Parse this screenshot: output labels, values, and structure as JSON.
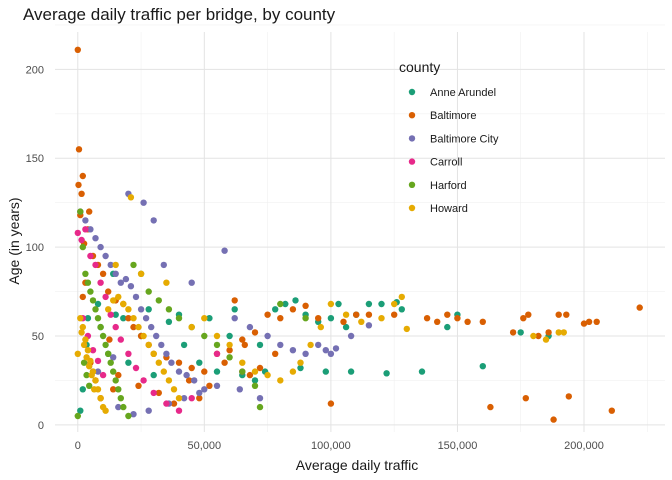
{
  "chart_data": {
    "type": "scatter",
    "title": "Average daily traffic per bridge, by county",
    "xlabel": "Average daily traffic",
    "ylabel": "Age (in years)",
    "xlim": [
      -9000,
      232000
    ],
    "ylim": [
      -4,
      221
    ],
    "x_ticks": [
      0,
      50000,
      100000,
      150000,
      200000
    ],
    "x_tick_labels": [
      "0",
      "50,000",
      "100,000",
      "150,000",
      "200,000"
    ],
    "y_ticks": [
      0,
      50,
      100,
      150,
      200
    ],
    "y_tick_labels": [
      "0",
      "50",
      "100",
      "150",
      "200"
    ],
    "grid": true,
    "legend": {
      "title": "county",
      "placement": "top-right (inside plot)",
      "entries": [
        "Anne Arundel",
        "Baltimore",
        "Baltimore City",
        "Carroll",
        "Harford",
        "Howard"
      ]
    },
    "colors": {
      "Anne Arundel": "#1b9e77",
      "Baltimore": "#d95f02",
      "Baltimore City": "#7570b3",
      "Carroll": "#e7298a",
      "Harford": "#66a61e",
      "Howard": "#e6ab02"
    },
    "series": [
      {
        "name": "Anne Arundel",
        "points": [
          [
            2000,
            20
          ],
          [
            3500,
            45
          ],
          [
            6000,
            30
          ],
          [
            9000,
            55
          ],
          [
            12000,
            40
          ],
          [
            15000,
            62
          ],
          [
            20000,
            35
          ],
          [
            25000,
            50
          ],
          [
            30000,
            28
          ],
          [
            36000,
            58
          ],
          [
            42000,
            45
          ],
          [
            48000,
            35
          ],
          [
            55000,
            30
          ],
          [
            60000,
            50
          ],
          [
            65000,
            28
          ],
          [
            70000,
            25
          ],
          [
            72000,
            45
          ],
          [
            78000,
            65
          ],
          [
            82000,
            68
          ],
          [
            86000,
            70
          ],
          [
            90000,
            62
          ],
          [
            95000,
            58
          ],
          [
            100000,
            60
          ],
          [
            103000,
            68
          ],
          [
            106000,
            55
          ],
          [
            110000,
            62
          ],
          [
            115000,
            68
          ],
          [
            120000,
            68
          ],
          [
            122000,
            29
          ],
          [
            126000,
            69
          ],
          [
            128000,
            65
          ],
          [
            136000,
            30
          ],
          [
            146000,
            55
          ],
          [
            150000,
            62
          ],
          [
            160000,
            33
          ],
          [
            175000,
            52
          ],
          [
            186000,
            50
          ],
          [
            8000,
            68
          ],
          [
            18000,
            60
          ],
          [
            28000,
            65
          ],
          [
            40000,
            62
          ],
          [
            52000,
            60
          ],
          [
            62000,
            65
          ],
          [
            74000,
            30
          ],
          [
            88000,
            32
          ],
          [
            98000,
            30
          ],
          [
            108000,
            30
          ],
          [
            1000,
            8
          ],
          [
            4000,
            60
          ],
          [
            14000,
            85
          ]
        ]
      },
      {
        "name": "Baltimore",
        "points": [
          [
            0,
            211
          ],
          [
            500,
            155
          ],
          [
            300,
            135
          ],
          [
            1500,
            130
          ],
          [
            2000,
            140
          ],
          [
            1000,
            118
          ],
          [
            4000,
            110
          ],
          [
            6000,
            95
          ],
          [
            8000,
            90
          ],
          [
            3000,
            80
          ],
          [
            10000,
            85
          ],
          [
            12000,
            75
          ],
          [
            15000,
            70
          ],
          [
            18000,
            68
          ],
          [
            20000,
            60
          ],
          [
            22000,
            55
          ],
          [
            25000,
            50
          ],
          [
            28000,
            45
          ],
          [
            30000,
            40
          ],
          [
            35000,
            38
          ],
          [
            40000,
            35
          ],
          [
            45000,
            32
          ],
          [
            50000,
            30
          ],
          [
            55000,
            40
          ],
          [
            60000,
            42
          ],
          [
            65000,
            48
          ],
          [
            70000,
            52
          ],
          [
            75000,
            62
          ],
          [
            80000,
            60
          ],
          [
            85000,
            65
          ],
          [
            90000,
            67
          ],
          [
            95000,
            60
          ],
          [
            100000,
            12
          ],
          [
            105000,
            58
          ],
          [
            110000,
            62
          ],
          [
            115000,
            62
          ],
          [
            125000,
            62
          ],
          [
            138000,
            60
          ],
          [
            142000,
            58
          ],
          [
            146000,
            62
          ],
          [
            150000,
            60
          ],
          [
            154000,
            58
          ],
          [
            160000,
            58
          ],
          [
            163000,
            10
          ],
          [
            172000,
            52
          ],
          [
            176000,
            60
          ],
          [
            177000,
            15
          ],
          [
            178000,
            62
          ],
          [
            182000,
            50
          ],
          [
            186000,
            52
          ],
          [
            188000,
            3
          ],
          [
            190000,
            62
          ],
          [
            193000,
            62
          ],
          [
            194000,
            16
          ],
          [
            200000,
            57
          ],
          [
            202000,
            58
          ],
          [
            205000,
            58
          ],
          [
            211000,
            8
          ],
          [
            222000,
            66
          ],
          [
            5000,
            35
          ],
          [
            7000,
            25
          ],
          [
            9000,
            15
          ],
          [
            14000,
            20
          ],
          [
            16000,
            28
          ],
          [
            24000,
            22
          ],
          [
            32000,
            18
          ],
          [
            38000,
            12
          ],
          [
            44000,
            25
          ],
          [
            48000,
            15
          ],
          [
            52000,
            22
          ],
          [
            58000,
            35
          ],
          [
            62000,
            70
          ],
          [
            66000,
            45
          ],
          [
            68000,
            28
          ],
          [
            72000,
            32
          ],
          [
            78000,
            40
          ],
          [
            2500,
            102
          ],
          [
            4500,
            120
          ],
          [
            12500,
            48
          ],
          [
            2000,
            72
          ]
        ]
      },
      {
        "name": "Baltimore City",
        "points": [
          [
            1000,
            120
          ],
          [
            3000,
            115
          ],
          [
            5000,
            110
          ],
          [
            7000,
            105
          ],
          [
            9000,
            100
          ],
          [
            11000,
            95
          ],
          [
            13000,
            90
          ],
          [
            15000,
            85
          ],
          [
            17000,
            80
          ],
          [
            19000,
            82
          ],
          [
            21000,
            78
          ],
          [
            23000,
            72
          ],
          [
            25000,
            65
          ],
          [
            27000,
            60
          ],
          [
            29000,
            55
          ],
          [
            31000,
            50
          ],
          [
            33000,
            45
          ],
          [
            35000,
            40
          ],
          [
            37000,
            35
          ],
          [
            40000,
            30
          ],
          [
            43000,
            28
          ],
          [
            46000,
            25
          ],
          [
            50000,
            20
          ],
          [
            20000,
            130
          ],
          [
            26000,
            125
          ],
          [
            30000,
            115
          ],
          [
            34000,
            90
          ],
          [
            45000,
            80
          ],
          [
            58000,
            98
          ],
          [
            62000,
            60
          ],
          [
            68000,
            55
          ],
          [
            75000,
            50
          ],
          [
            80000,
            45
          ],
          [
            85000,
            42
          ],
          [
            90000,
            40
          ],
          [
            95000,
            45
          ],
          [
            98000,
            42
          ],
          [
            100000,
            40
          ],
          [
            102000,
            43
          ],
          [
            108000,
            50
          ],
          [
            115000,
            56
          ],
          [
            16000,
            10
          ],
          [
            22000,
            6
          ],
          [
            28000,
            8
          ],
          [
            36000,
            12
          ],
          [
            42000,
            15
          ],
          [
            48000,
            18
          ],
          [
            55000,
            22
          ],
          [
            64000,
            20
          ],
          [
            72000,
            15
          ],
          [
            8000,
            30
          ],
          [
            14000,
            38
          ]
        ]
      },
      {
        "name": "Carroll",
        "points": [
          [
            0,
            108
          ],
          [
            1500,
            104
          ],
          [
            3000,
            110
          ],
          [
            5000,
            95
          ],
          [
            7000,
            90
          ],
          [
            9000,
            80
          ],
          [
            11000,
            72
          ],
          [
            13000,
            62
          ],
          [
            15000,
            55
          ],
          [
            17000,
            48
          ],
          [
            20000,
            40
          ],
          [
            23000,
            32
          ],
          [
            26000,
            25
          ],
          [
            30000,
            18
          ],
          [
            35000,
            12
          ],
          [
            40000,
            8
          ],
          [
            45000,
            15
          ],
          [
            55000,
            40
          ],
          [
            65000,
            30
          ],
          [
            2000,
            60
          ],
          [
            4000,
            50
          ],
          [
            6000,
            42
          ],
          [
            8000,
            36
          ],
          [
            10000,
            28
          ]
        ]
      },
      {
        "name": "Harford",
        "points": [
          [
            0,
            5
          ],
          [
            1000,
            120
          ],
          [
            2000,
            100
          ],
          [
            3000,
            85
          ],
          [
            4000,
            80
          ],
          [
            5000,
            75
          ],
          [
            6000,
            70
          ],
          [
            7000,
            65
          ],
          [
            8000,
            60
          ],
          [
            9000,
            55
          ],
          [
            10000,
            50
          ],
          [
            11000,
            45
          ],
          [
            12000,
            40
          ],
          [
            13000,
            35
          ],
          [
            14000,
            30
          ],
          [
            15000,
            25
          ],
          [
            16000,
            20
          ],
          [
            17000,
            15
          ],
          [
            18000,
            10
          ],
          [
            20000,
            5
          ],
          [
            22000,
            90
          ],
          [
            25000,
            85
          ],
          [
            28000,
            75
          ],
          [
            32000,
            70
          ],
          [
            36000,
            65
          ],
          [
            40000,
            60
          ],
          [
            45000,
            55
          ],
          [
            50000,
            50
          ],
          [
            55000,
            45
          ],
          [
            60000,
            38
          ],
          [
            65000,
            30
          ],
          [
            70000,
            22
          ],
          [
            72000,
            10
          ],
          [
            80000,
            68
          ],
          [
            90000,
            60
          ],
          [
            2500,
            35
          ],
          [
            3500,
            28
          ],
          [
            4500,
            22
          ]
        ]
      },
      {
        "name": "Howard",
        "points": [
          [
            0,
            40
          ],
          [
            1000,
            60
          ],
          [
            2000,
            55
          ],
          [
            3000,
            48
          ],
          [
            4000,
            42
          ],
          [
            5000,
            36
          ],
          [
            6000,
            30
          ],
          [
            7000,
            25
          ],
          [
            8000,
            20
          ],
          [
            9000,
            15
          ],
          [
            10000,
            10
          ],
          [
            11000,
            8
          ],
          [
            12000,
            65
          ],
          [
            14000,
            70
          ],
          [
            16000,
            72
          ],
          [
            18000,
            68
          ],
          [
            20000,
            65
          ],
          [
            22000,
            60
          ],
          [
            24000,
            55
          ],
          [
            26000,
            50
          ],
          [
            28000,
            45
          ],
          [
            30000,
            40
          ],
          [
            32000,
            35
          ],
          [
            34000,
            30
          ],
          [
            36000,
            25
          ],
          [
            38000,
            20
          ],
          [
            40000,
            15
          ],
          [
            45000,
            55
          ],
          [
            50000,
            60
          ],
          [
            55000,
            50
          ],
          [
            60000,
            45
          ],
          [
            65000,
            35
          ],
          [
            70000,
            30
          ],
          [
            75000,
            28
          ],
          [
            80000,
            25
          ],
          [
            85000,
            30
          ],
          [
            88000,
            35
          ],
          [
            92000,
            45
          ],
          [
            96000,
            55
          ],
          [
            100000,
            68
          ],
          [
            106000,
            62
          ],
          [
            112000,
            58
          ],
          [
            120000,
            60
          ],
          [
            125000,
            68
          ],
          [
            128000,
            72
          ],
          [
            130000,
            54
          ],
          [
            180000,
            50
          ],
          [
            185000,
            48
          ],
          [
            190000,
            52
          ],
          [
            192000,
            52
          ],
          [
            21000,
            128
          ],
          [
            15000,
            90
          ],
          [
            25000,
            85
          ],
          [
            35000,
            80
          ],
          [
            1500,
            52
          ],
          [
            2500,
            45
          ],
          [
            3500,
            38
          ],
          [
            4500,
            33
          ],
          [
            5500,
            28
          ],
          [
            6500,
            20
          ]
        ]
      }
    ]
  }
}
